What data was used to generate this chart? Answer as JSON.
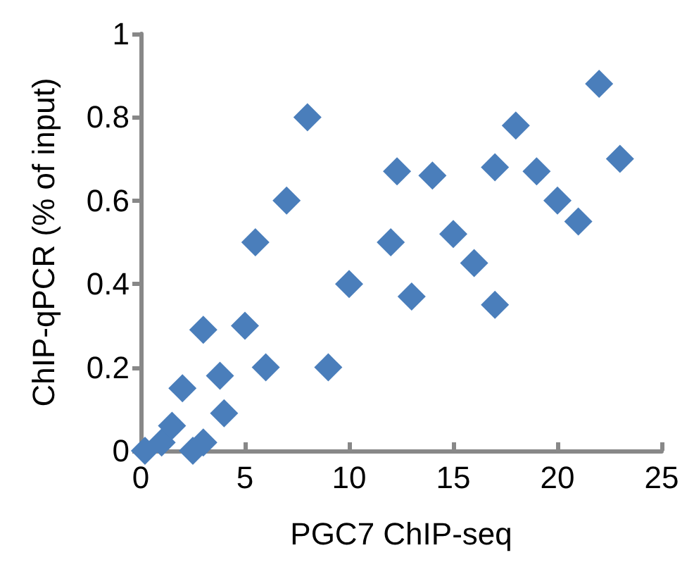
{
  "chart_data": {
    "type": "scatter",
    "xlabel": "PGC7 ChIP-seq",
    "ylabel": "ChIP-qPCR (% of input)",
    "series": [
      {
        "color": "#4a7ebb",
        "x": [
          0.2,
          1,
          1.5,
          2,
          2.5,
          3,
          3,
          3.8,
          4,
          5,
          5.5,
          6,
          7,
          8,
          9,
          10,
          12,
          12.3,
          13,
          14,
          15,
          16,
          17,
          17,
          18,
          19,
          20,
          21,
          22,
          23
        ],
        "values": [
          0,
          0.02,
          0.06,
          0.15,
          0,
          0.02,
          0.29,
          0.18,
          0.09,
          0.3,
          0.5,
          0.2,
          0.6,
          0.8,
          0.2,
          0.4,
          0.5,
          0.67,
          0.37,
          0.66,
          0.52,
          0.45,
          0.35,
          0.68,
          0.78,
          0.67,
          0.6,
          0.55,
          0.88,
          0.7
        ]
      }
    ],
    "xlim": [
      0,
      25
    ],
    "xticks": [
      0,
      5,
      10,
      15,
      20,
      25
    ],
    "ylim": [
      0,
      1
    ],
    "yticks": [
      0,
      0.2,
      0.4,
      0.6,
      0.8,
      1
    ],
    "grid": false,
    "marker": "diamond"
  }
}
